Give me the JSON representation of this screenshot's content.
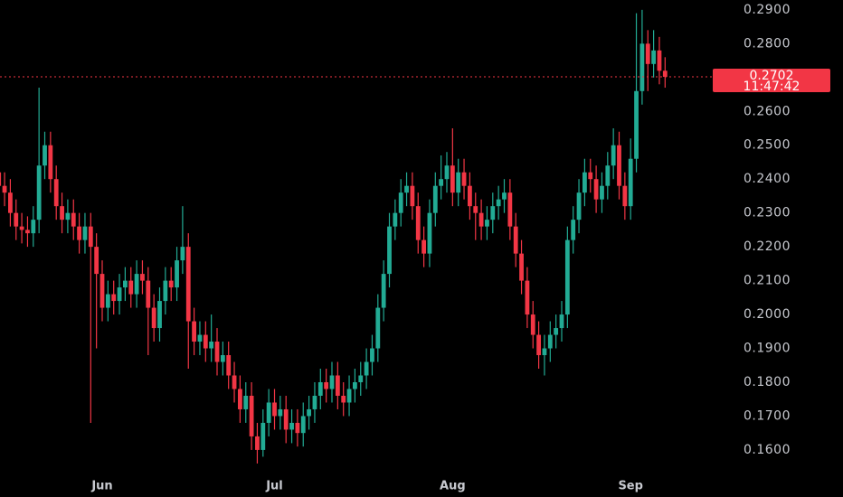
{
  "chart_data": {
    "type": "candlestick",
    "up_color": "#22ab94",
    "down_color": "#f23645",
    "ylim": [
      0.1461,
      0.2929
    ],
    "yticks": [
      {
        "value": 0.16,
        "label": "0.1600"
      },
      {
        "value": 0.17,
        "label": "0.1700"
      },
      {
        "value": 0.18,
        "label": "0.1800"
      },
      {
        "value": 0.19,
        "label": "0.1900"
      },
      {
        "value": 0.2,
        "label": "0.2000"
      },
      {
        "value": 0.21,
        "label": "0.2100"
      },
      {
        "value": 0.22,
        "label": "0.2200"
      },
      {
        "value": 0.23,
        "label": "0.2300"
      },
      {
        "value": 0.24,
        "label": "0.2400"
      },
      {
        "value": 0.25,
        "label": "0.2500"
      },
      {
        "value": 0.26,
        "label": "0.2600"
      },
      {
        "value": 0.28,
        "label": "0.2800"
      },
      {
        "value": 0.29,
        "label": "0.2900"
      }
    ],
    "last_price": 0.2702,
    "last_price_label": "0.2702",
    "countdown": "11:47:42",
    "categories": [
      null,
      null,
      null,
      null,
      null,
      null,
      null,
      null,
      null,
      null,
      null,
      null,
      null,
      null,
      null,
      null,
      null,
      null,
      "Jun",
      null,
      null,
      null,
      null,
      null,
      null,
      null,
      null,
      null,
      null,
      null,
      null,
      null,
      null,
      null,
      null,
      null,
      null,
      null,
      null,
      null,
      null,
      null,
      null,
      null,
      null,
      null,
      null,
      null,
      "Jul",
      null,
      null,
      null,
      null,
      null,
      null,
      null,
      null,
      null,
      null,
      null,
      null,
      null,
      null,
      null,
      null,
      null,
      null,
      null,
      null,
      null,
      null,
      null,
      null,
      null,
      null,
      null,
      null,
      null,
      null,
      "Aug",
      null,
      null,
      null,
      null,
      null,
      null,
      null,
      null,
      null,
      null,
      null,
      null,
      null,
      null,
      null,
      null,
      null,
      null,
      null,
      null,
      null,
      null,
      null,
      null,
      null,
      null,
      null,
      null,
      null,
      null,
      "Sep",
      null,
      null,
      null,
      null,
      null,
      null
    ],
    "open": [
      0.242,
      0.238,
      0.236,
      0.23,
      0.226,
      0.225,
      0.224,
      0.228,
      0.244,
      0.25,
      0.24,
      0.232,
      0.228,
      0.23,
      0.226,
      0.222,
      0.226,
      0.22,
      0.212,
      0.202,
      0.206,
      0.204,
      0.208,
      0.21,
      0.206,
      0.212,
      0.21,
      0.202,
      0.196,
      0.204,
      0.21,
      0.208,
      0.216,
      0.22,
      0.198,
      0.192,
      0.194,
      0.19,
      0.192,
      0.186,
      0.188,
      0.182,
      0.178,
      0.172,
      0.176,
      0.164,
      0.16,
      0.168,
      0.174,
      0.17,
      0.172,
      0.166,
      0.168,
      0.165,
      0.17,
      0.172,
      0.176,
      0.18,
      0.178,
      0.182,
      0.176,
      0.174,
      0.178,
      0.18,
      0.182,
      0.186,
      0.19,
      0.202,
      0.212,
      0.226,
      0.23,
      0.236,
      0.238,
      0.232,
      0.222,
      0.218,
      0.23,
      0.238,
      0.24,
      0.244,
      0.236,
      0.242,
      0.238,
      0.232,
      0.23,
      0.226,
      0.228,
      0.232,
      0.234,
      0.236,
      0.226,
      0.218,
      0.21,
      0.2,
      0.194,
      0.188,
      0.19,
      0.194,
      0.196,
      0.2,
      0.222,
      0.228,
      0.236,
      0.242,
      0.24,
      0.234,
      0.238,
      0.244,
      0.25,
      0.238,
      0.232,
      0.246,
      0.266,
      0.28,
      0.274,
      0.278,
      0.272
    ],
    "high": [
      0.246,
      0.242,
      0.24,
      0.234,
      0.23,
      0.229,
      0.232,
      0.267,
      0.254,
      0.254,
      0.244,
      0.236,
      0.234,
      0.234,
      0.23,
      0.23,
      0.23,
      0.224,
      0.216,
      0.21,
      0.21,
      0.212,
      0.214,
      0.214,
      0.216,
      0.216,
      0.214,
      0.206,
      0.208,
      0.214,
      0.214,
      0.22,
      0.232,
      0.224,
      0.202,
      0.198,
      0.198,
      0.2,
      0.196,
      0.192,
      0.192,
      0.186,
      0.182,
      0.18,
      0.18,
      0.168,
      0.172,
      0.178,
      0.178,
      0.176,
      0.176,
      0.172,
      0.172,
      0.174,
      0.176,
      0.18,
      0.184,
      0.184,
      0.186,
      0.186,
      0.18,
      0.182,
      0.184,
      0.186,
      0.19,
      0.194,
      0.206,
      0.216,
      0.23,
      0.234,
      0.24,
      0.242,
      0.242,
      0.236,
      0.226,
      0.234,
      0.242,
      0.247,
      0.248,
      0.255,
      0.246,
      0.246,
      0.242,
      0.236,
      0.234,
      0.232,
      0.236,
      0.238,
      0.24,
      0.24,
      0.23,
      0.222,
      0.214,
      0.204,
      0.198,
      0.194,
      0.198,
      0.2,
      0.204,
      0.226,
      0.232,
      0.24,
      0.246,
      0.246,
      0.244,
      0.242,
      0.248,
      0.255,
      0.254,
      0.242,
      0.252,
      0.289,
      0.29,
      0.284,
      0.284,
      0.282,
      0.276
    ],
    "low": [
      0.234,
      0.232,
      0.226,
      0.222,
      0.221,
      0.22,
      0.22,
      0.224,
      0.24,
      0.236,
      0.228,
      0.224,
      0.224,
      0.222,
      0.218,
      0.218,
      0.168,
      0.19,
      0.198,
      0.198,
      0.2,
      0.2,
      0.204,
      0.202,
      0.202,
      0.206,
      0.188,
      0.192,
      0.192,
      0.2,
      0.204,
      0.204,
      0.212,
      0.184,
      0.188,
      0.188,
      0.186,
      0.186,
      0.182,
      0.182,
      0.178,
      0.174,
      0.168,
      0.168,
      0.16,
      0.156,
      0.158,
      0.164,
      0.166,
      0.166,
      0.162,
      0.162,
      0.161,
      0.161,
      0.166,
      0.168,
      0.172,
      0.174,
      0.174,
      0.172,
      0.17,
      0.17,
      0.174,
      0.176,
      0.178,
      0.182,
      0.186,
      0.198,
      0.208,
      0.222,
      0.226,
      0.232,
      0.228,
      0.218,
      0.214,
      0.214,
      0.226,
      0.234,
      0.236,
      0.232,
      0.232,
      0.234,
      0.228,
      0.222,
      0.222,
      0.222,
      0.224,
      0.228,
      0.23,
      0.222,
      0.214,
      0.206,
      0.196,
      0.19,
      0.184,
      0.182,
      0.186,
      0.19,
      0.192,
      0.196,
      0.218,
      0.224,
      0.232,
      0.236,
      0.23,
      0.23,
      0.234,
      0.24,
      0.234,
      0.228,
      0.228,
      0.242,
      0.262,
      0.266,
      0.27,
      0.268,
      0.267
    ],
    "close": [
      0.238,
      0.236,
      0.23,
      0.226,
      0.225,
      0.224,
      0.228,
      0.244,
      0.25,
      0.24,
      0.232,
      0.228,
      0.23,
      0.226,
      0.222,
      0.226,
      0.22,
      0.212,
      0.202,
      0.206,
      0.204,
      0.208,
      0.21,
      0.206,
      0.212,
      0.21,
      0.202,
      0.196,
      0.204,
      0.21,
      0.208,
      0.216,
      0.22,
      0.198,
      0.192,
      0.194,
      0.19,
      0.192,
      0.186,
      0.188,
      0.182,
      0.178,
      0.172,
      0.176,
      0.164,
      0.16,
      0.168,
      0.174,
      0.17,
      0.172,
      0.166,
      0.168,
      0.165,
      0.17,
      0.172,
      0.176,
      0.18,
      0.178,
      0.182,
      0.176,
      0.174,
      0.178,
      0.18,
      0.182,
      0.186,
      0.19,
      0.202,
      0.212,
      0.226,
      0.23,
      0.236,
      0.238,
      0.232,
      0.222,
      0.218,
      0.23,
      0.238,
      0.24,
      0.244,
      0.236,
      0.242,
      0.238,
      0.232,
      0.23,
      0.226,
      0.228,
      0.232,
      0.234,
      0.236,
      0.226,
      0.218,
      0.21,
      0.2,
      0.194,
      0.188,
      0.19,
      0.194,
      0.196,
      0.2,
      0.222,
      0.228,
      0.236,
      0.242,
      0.24,
      0.234,
      0.238,
      0.244,
      0.25,
      0.238,
      0.232,
      0.246,
      0.266,
      0.28,
      0.274,
      0.278,
      0.272,
      0.2702
    ]
  }
}
